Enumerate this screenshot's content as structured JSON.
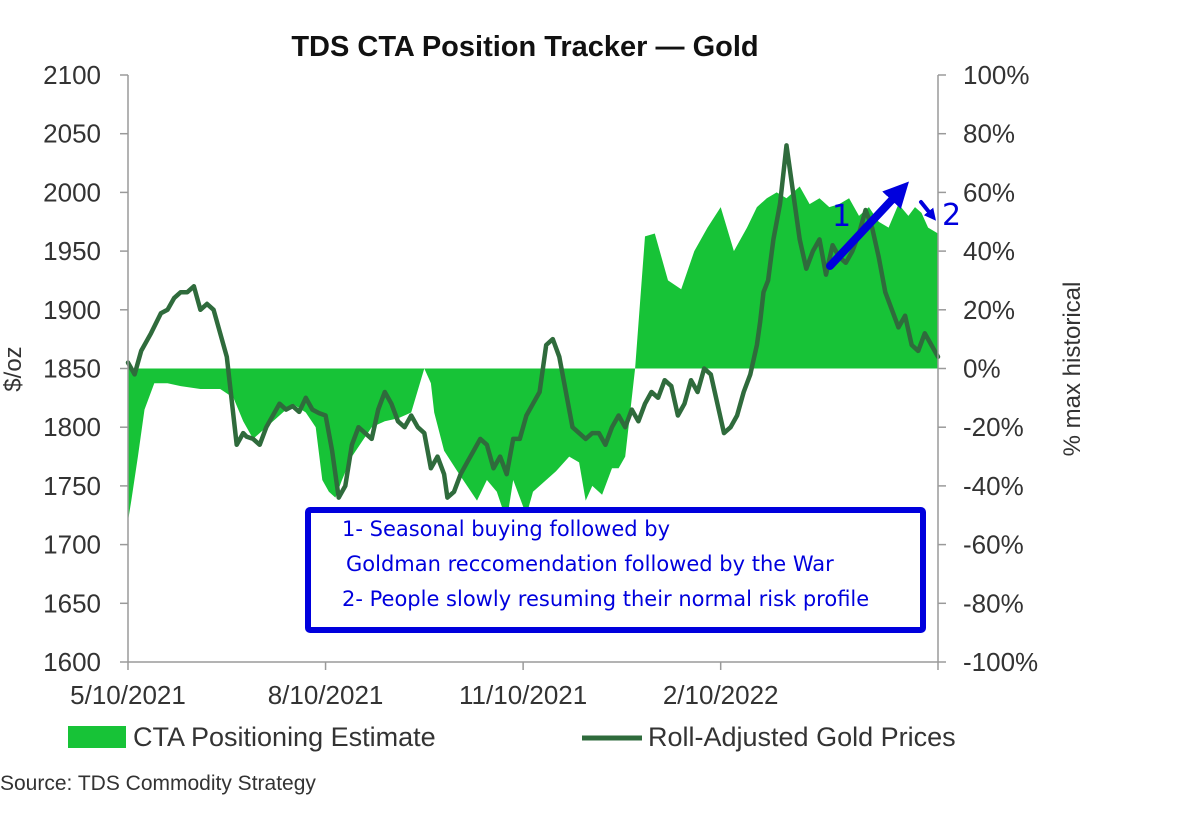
{
  "chart_data": {
    "type": "area+line",
    "title": "TDS CTA Position Tracker — Gold",
    "ylabel_left": "$/oz",
    "ylabel_right": "% max historical",
    "ylim_left": [
      1600,
      2100
    ],
    "ylim_right": [
      -100,
      100
    ],
    "yticks_left": [
      "2100",
      "2050",
      "2000",
      "1950",
      "1900",
      "1850",
      "1800",
      "1750",
      "1700",
      "1650",
      "1600"
    ],
    "yticks_right": [
      "100%",
      "80%",
      "60%",
      "40%",
      "20%",
      "0%",
      "-20%",
      "-40%",
      "-60%",
      "-80%",
      "-100%"
    ],
    "xticks": [
      "5/10/2021",
      "8/10/2021",
      "11/10/2021",
      "2/10/2022"
    ],
    "x_range_months": [
      0,
      12.3
    ],
    "x_tick_months": [
      0,
      3,
      6,
      9
    ],
    "series": [
      {
        "name": "CTA Positioning Estimate",
        "kind": "area",
        "axis": "right",
        "color": "#17c337",
        "x": [
          0,
          0.05,
          0.15,
          0.25,
          0.4,
          0.6,
          0.8,
          1.1,
          1.4,
          1.6,
          1.75,
          1.9,
          2.1,
          2.3,
          2.5,
          2.7,
          2.85,
          2.95,
          3.05,
          3.15,
          3.25,
          3.4,
          3.55,
          3.7,
          3.9,
          4.1,
          4.3,
          4.5,
          4.6,
          4.65,
          4.8,
          5.0,
          5.15,
          5.3,
          5.45,
          5.6,
          5.75,
          5.85,
          5.95,
          6.05,
          6.15,
          6.35,
          6.5,
          6.7,
          6.85,
          6.95,
          7.05,
          7.2,
          7.35,
          7.45,
          7.55,
          7.6,
          7.7,
          7.85,
          8.0,
          8.2,
          8.4,
          8.6,
          8.8,
          9.0,
          9.2,
          9.4,
          9.55,
          9.7,
          9.85,
          10.0,
          10.1,
          10.2,
          10.35,
          10.5,
          10.65,
          10.8,
          10.95,
          11.1,
          11.25,
          11.4,
          11.55,
          11.7,
          11.85,
          11.95,
          12.05,
          12.15,
          12.3
        ],
        "values": [
          -52,
          -45,
          -30,
          -14,
          -5,
          -5,
          -6,
          -7,
          -7,
          -10,
          -18,
          -24,
          -20,
          -16,
          -12,
          -15,
          -20,
          -38,
          -42,
          -44,
          -38,
          -30,
          -25,
          -20,
          -18,
          -17,
          -15,
          0,
          -5,
          -15,
          -28,
          -35,
          -40,
          -45,
          -38,
          -42,
          -52,
          -38,
          -44,
          -50,
          -42,
          -38,
          -35,
          -30,
          -32,
          -45,
          -40,
          -43,
          -34,
          -34,
          -30,
          -20,
          0,
          45,
          46,
          30,
          27,
          40,
          48,
          55,
          40,
          48,
          55,
          58,
          60,
          58,
          60,
          62,
          56,
          58,
          55,
          56,
          58,
          52,
          55,
          50,
          48,
          56,
          52,
          55,
          53,
          48,
          46
        ]
      },
      {
        "name": "Roll-Adjusted Gold Prices",
        "kind": "line",
        "axis": "left",
        "color": "#2f6b3c",
        "x": [
          0,
          0.05,
          0.1,
          0.2,
          0.35,
          0.5,
          0.6,
          0.7,
          0.8,
          0.9,
          1.0,
          1.1,
          1.2,
          1.3,
          1.4,
          1.5,
          1.65,
          1.75,
          1.8,
          1.9,
          2.0,
          2.1,
          2.2,
          2.3,
          2.4,
          2.5,
          2.6,
          2.7,
          2.8,
          2.9,
          3.0,
          3.1,
          3.2,
          3.3,
          3.4,
          3.5,
          3.6,
          3.7,
          3.8,
          3.9,
          4.0,
          4.1,
          4.2,
          4.3,
          4.4,
          4.5,
          4.6,
          4.7,
          4.8,
          4.85,
          4.95,
          5.05,
          5.15,
          5.25,
          5.35,
          5.45,
          5.55,
          5.65,
          5.75,
          5.85,
          5.95,
          6.05,
          6.15,
          6.25,
          6.35,
          6.45,
          6.55,
          6.65,
          6.75,
          6.85,
          6.95,
          7.05,
          7.15,
          7.25,
          7.35,
          7.45,
          7.55,
          7.65,
          7.75,
          7.85,
          7.95,
          8.05,
          8.15,
          8.25,
          8.35,
          8.45,
          8.55,
          8.65,
          8.75,
          8.85,
          8.95,
          9.05,
          9.15,
          9.25,
          9.35,
          9.45,
          9.55,
          9.6,
          9.65,
          9.72,
          9.8,
          9.9,
          10.0,
          10.1,
          10.2,
          10.3,
          10.4,
          10.5,
          10.6,
          10.7,
          10.8,
          10.9,
          11.0,
          11.1,
          11.2,
          11.3,
          11.4,
          11.5,
          11.6,
          11.7,
          11.8,
          11.9,
          12.0,
          12.1,
          12.2,
          12.3
        ],
        "values": [
          1855,
          1850,
          1845,
          1865,
          1880,
          1897,
          1900,
          1910,
          1915,
          1915,
          1920,
          1900,
          1905,
          1900,
          1880,
          1860,
          1785,
          1795,
          1792,
          1790,
          1785,
          1800,
          1810,
          1820,
          1815,
          1818,
          1813,
          1825,
          1815,
          1812,
          1810,
          1780,
          1740,
          1750,
          1785,
          1800,
          1795,
          1790,
          1815,
          1830,
          1820,
          1805,
          1800,
          1810,
          1800,
          1795,
          1765,
          1775,
          1760,
          1740,
          1745,
          1760,
          1770,
          1780,
          1790,
          1785,
          1765,
          1775,
          1760,
          1790,
          1790,
          1810,
          1820,
          1830,
          1870,
          1875,
          1860,
          1830,
          1800,
          1795,
          1790,
          1795,
          1795,
          1785,
          1800,
          1810,
          1800,
          1815,
          1805,
          1820,
          1830,
          1825,
          1840,
          1835,
          1810,
          1820,
          1840,
          1830,
          1850,
          1845,
          1820,
          1795,
          1800,
          1810,
          1830,
          1845,
          1870,
          1890,
          1915,
          1925,
          1960,
          1990,
          2040,
          2000,
          1960,
          1935,
          1950,
          1960,
          1930,
          1955,
          1945,
          1940,
          1950,
          1965,
          1985,
          1970,
          1945,
          1915,
          1900,
          1885,
          1895,
          1870,
          1865,
          1880,
          1870,
          1860
        ]
      }
    ],
    "legend_position": "bottom",
    "source": "Source: TDS Commodity Strategy"
  },
  "annotations": {
    "box_lines": [
      "1- Seasonal buying followed by",
      "Goldman reccomendation followed by the War",
      "2- People slowly resuming their normal risk profile"
    ],
    "arrow_1_label": "1",
    "arrow_2_label": "2",
    "color": "#0000dd"
  }
}
